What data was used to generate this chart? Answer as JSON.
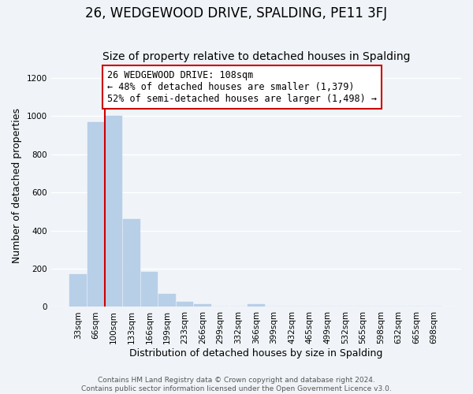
{
  "title": "26, WEDGEWOOD DRIVE, SPALDING, PE11 3FJ",
  "subtitle": "Size of property relative to detached houses in Spalding",
  "xlabel": "Distribution of detached houses by size in Spalding",
  "ylabel": "Number of detached properties",
  "footer_lines": [
    "Contains HM Land Registry data © Crown copyright and database right 2024.",
    "Contains public sector information licensed under the Open Government Licence v3.0."
  ],
  "bar_labels": [
    "33sqm",
    "66sqm",
    "100sqm",
    "133sqm",
    "166sqm",
    "199sqm",
    "233sqm",
    "266sqm",
    "299sqm",
    "332sqm",
    "366sqm",
    "399sqm",
    "432sqm",
    "465sqm",
    "499sqm",
    "532sqm",
    "565sqm",
    "598sqm",
    "632sqm",
    "665sqm",
    "698sqm"
  ],
  "bar_values": [
    170,
    970,
    1000,
    460,
    185,
    70,
    25,
    15,
    0,
    0,
    15,
    0,
    0,
    0,
    0,
    0,
    0,
    0,
    0,
    0,
    0
  ],
  "bar_color": "#b8cfe8",
  "vertical_line_color": "#cc0000",
  "vertical_line_bar_index": 2,
  "annotation_line1": "26 WEDGEWOOD DRIVE: 108sqm",
  "annotation_line2": "← 48% of detached houses are smaller (1,379)",
  "annotation_line3": "52% of semi-detached houses are larger (1,498) →",
  "annotation_box_edgecolor": "#cc0000",
  "annotation_box_facecolor": "#ffffff",
  "ylim": [
    0,
    1270
  ],
  "yticks": [
    0,
    200,
    400,
    600,
    800,
    1000,
    1200
  ],
  "background_color": "#f0f4f8",
  "grid_color": "#ffffff",
  "title_fontsize": 12,
  "subtitle_fontsize": 10,
  "axis_label_fontsize": 9,
  "tick_fontsize": 7.5,
  "annotation_fontsize": 8.5,
  "footer_fontsize": 6.5
}
